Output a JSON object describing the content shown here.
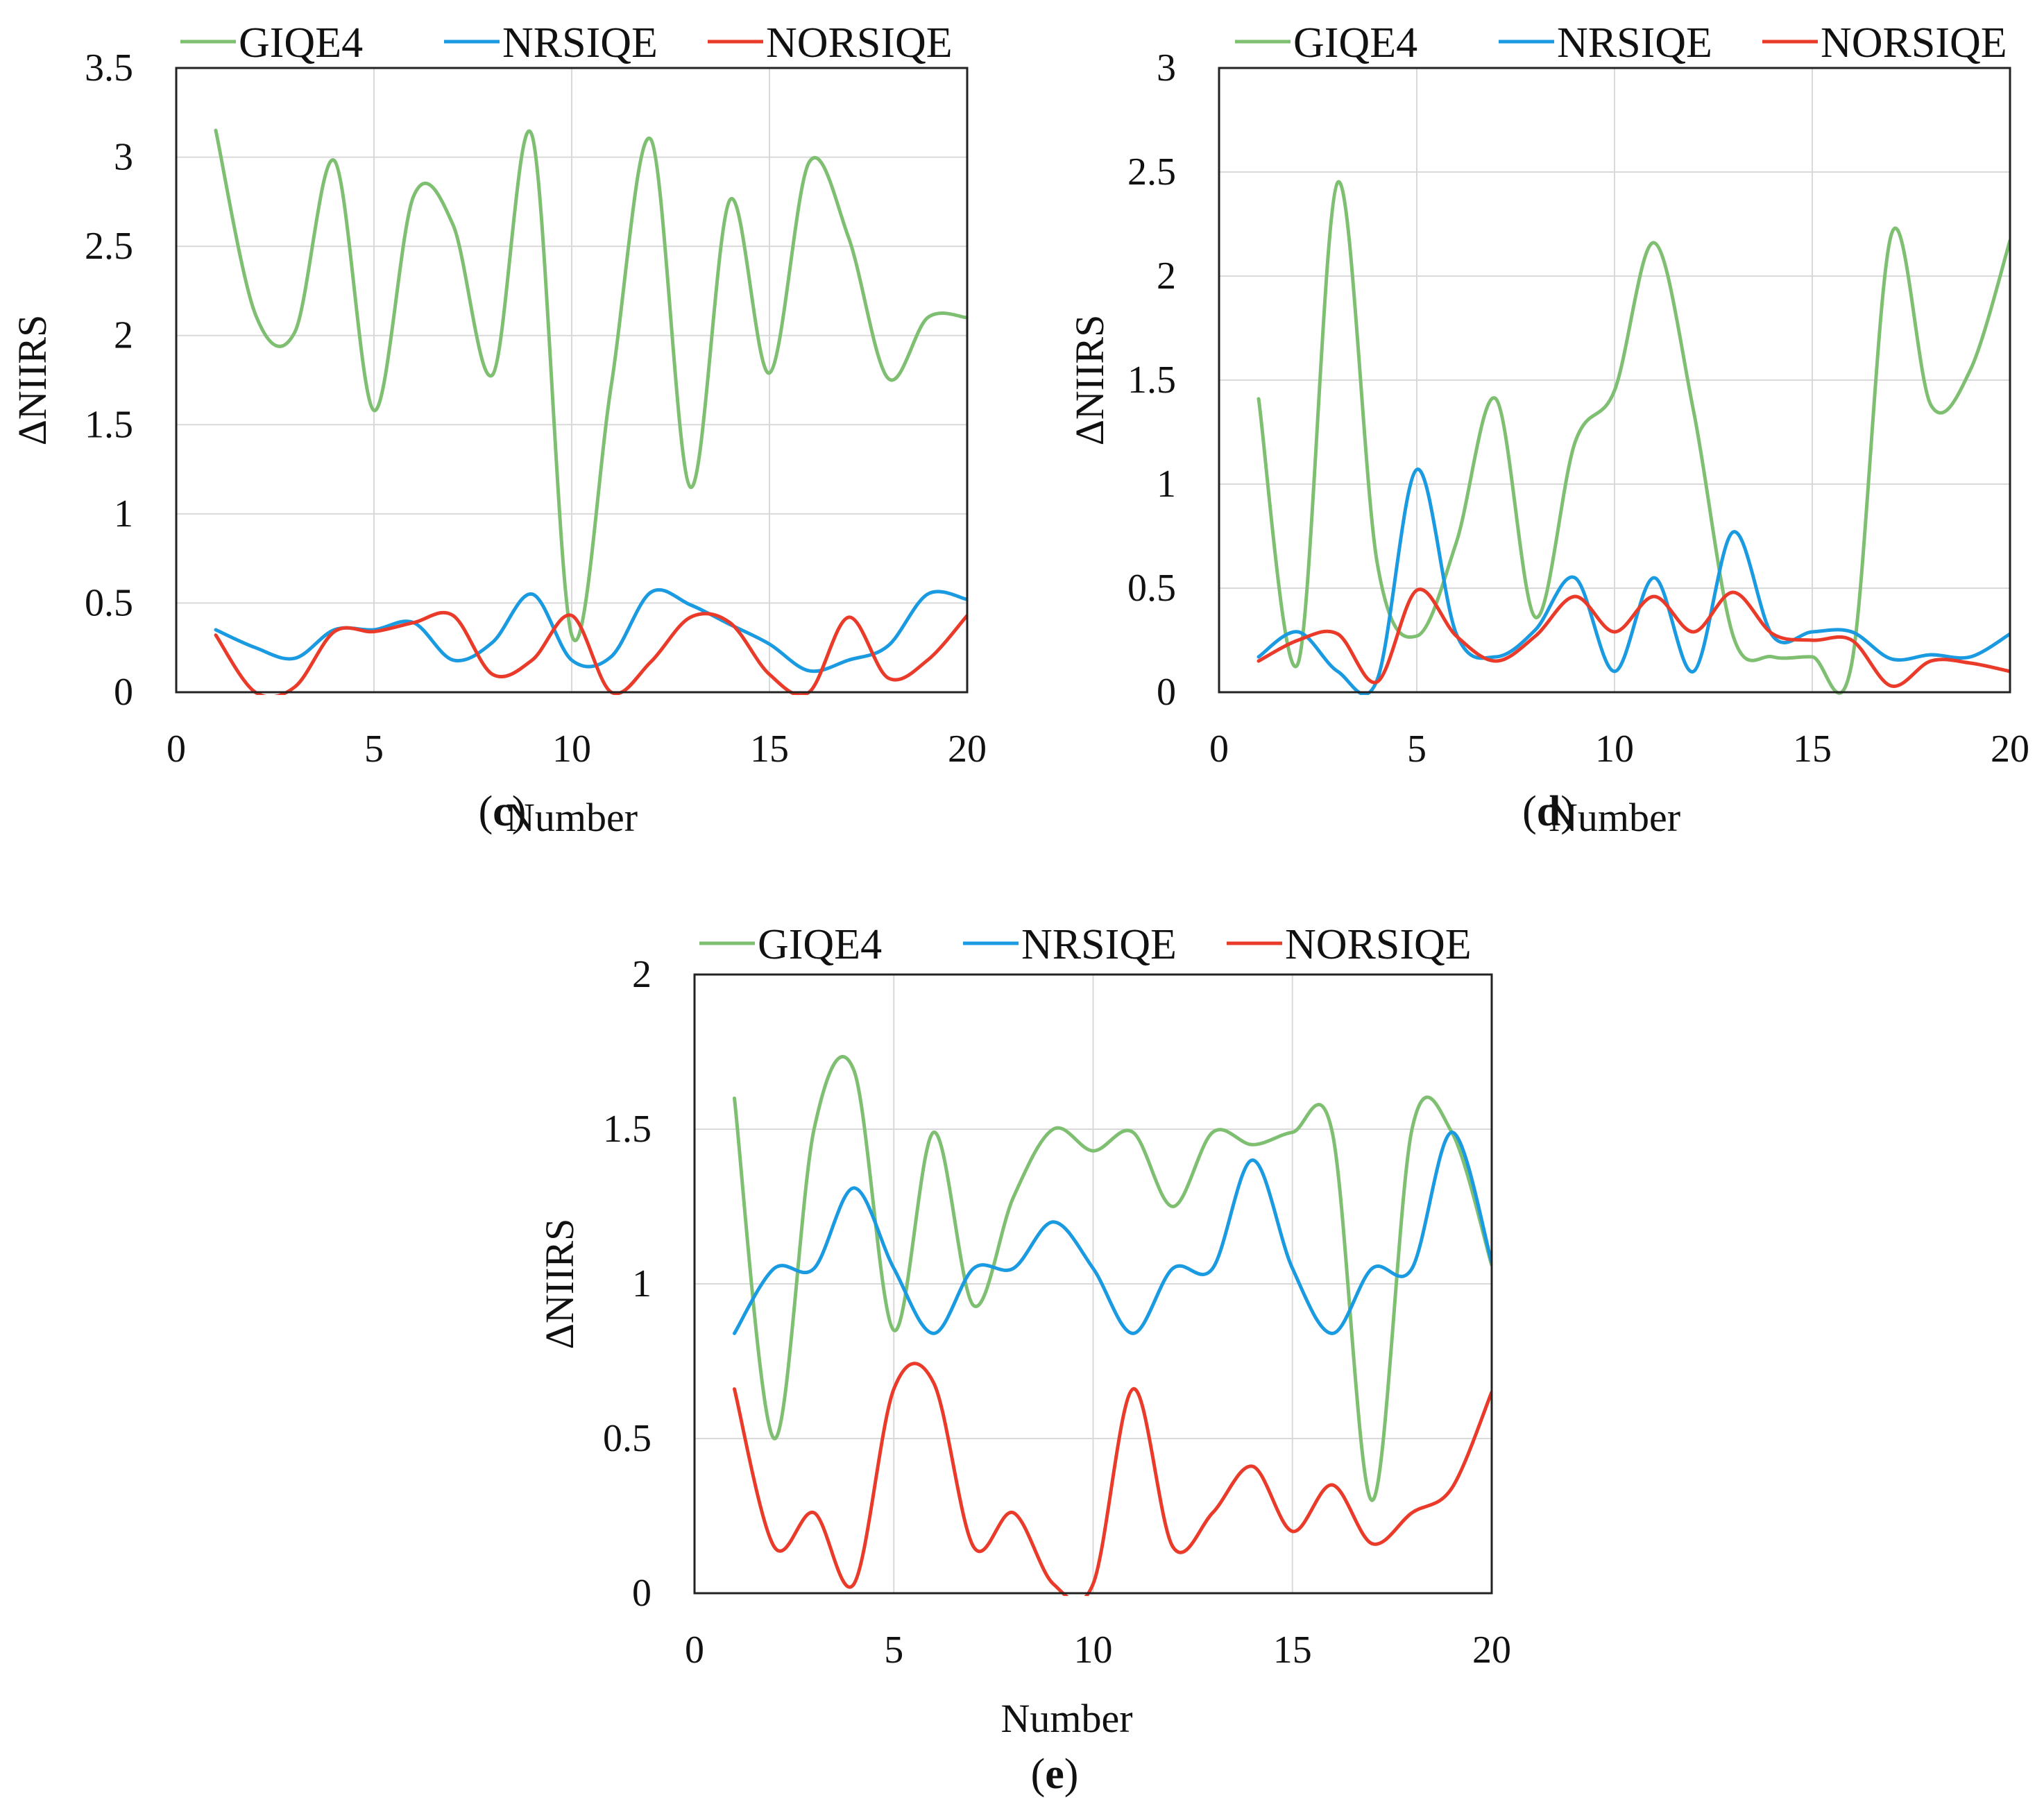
{
  "figure": {
    "ylabel": "ΔNIIRS",
    "xlabel": "Number",
    "legend": [
      "GIQE4",
      "NRSIQE",
      "NORSIQE"
    ]
  },
  "colors": {
    "GIQE4": "#7fbf72",
    "NRSIQE": "#1a9ae0",
    "NORSIQE": "#ea3b2a",
    "grid": "#d9d9d9",
    "axis": "#222222"
  },
  "chart_data": [
    {
      "type": "line",
      "panel_label": "c",
      "xlabel": "Number",
      "ylabel": "ΔNIIRS",
      "xlim": [
        0,
        20
      ],
      "ylim": [
        0,
        3.5
      ],
      "xticks": [
        "0",
        "5",
        "10",
        "15",
        "20"
      ],
      "yticks": [
        "0",
        "0.5",
        "1",
        "1.5",
        "2",
        "2.5",
        "3",
        "3.5"
      ],
      "grid": true,
      "legend_position": "top",
      "x": [
        1,
        2,
        3,
        4,
        5,
        6,
        7,
        8,
        9,
        10,
        11,
        12,
        13,
        14,
        15,
        16,
        17,
        18,
        19,
        20
      ],
      "series": [
        {
          "name": "GIQE4",
          "values": [
            3.15,
            2.12,
            2.02,
            2.98,
            1.58,
            2.78,
            2.62,
            1.78,
            3.12,
            0.32,
            1.72,
            3.1,
            1.15,
            2.76,
            1.79,
            2.97,
            2.55,
            1.76,
            2.1,
            2.1
          ]
        },
        {
          "name": "NRSIQE",
          "values": [
            0.35,
            0.25,
            0.19,
            0.35,
            0.35,
            0.39,
            0.18,
            0.28,
            0.55,
            0.18,
            0.2,
            0.56,
            0.49,
            0.38,
            0.27,
            0.12,
            0.18,
            0.26,
            0.55,
            0.52
          ]
        },
        {
          "name": "NORSIQE",
          "values": [
            0.32,
            0.0,
            0.03,
            0.34,
            0.34,
            0.39,
            0.43,
            0.1,
            0.18,
            0.43,
            0.0,
            0.17,
            0.42,
            0.39,
            0.1,
            0.0,
            0.42,
            0.08,
            0.18,
            0.43
          ]
        }
      ]
    },
    {
      "type": "line",
      "panel_label": "d",
      "xlabel": "Number",
      "ylabel": "ΔNIIRS",
      "xlim": [
        0,
        20
      ],
      "ylim": [
        0,
        3
      ],
      "xticks": [
        "0",
        "5",
        "10",
        "15",
        "20"
      ],
      "yticks": [
        "0",
        "0.5",
        "1",
        "1.5",
        "2",
        "2.5",
        "3"
      ],
      "grid": true,
      "legend_position": "top",
      "x": [
        1,
        2,
        3,
        4,
        5,
        6,
        7,
        8,
        9,
        10,
        11,
        12,
        13,
        14,
        15,
        16,
        17,
        18,
        19,
        20
      ],
      "series": [
        {
          "name": "GIQE4",
          "values": [
            1.41,
            0.14,
            2.45,
            0.62,
            0.27,
            0.72,
            1.41,
            0.36,
            1.2,
            1.45,
            2.16,
            1.35,
            0.27,
            0.17,
            0.17,
            0.14,
            2.2,
            1.38,
            1.55,
            2.17
          ]
        },
        {
          "name": "NRSIQE",
          "values": [
            0.17,
            0.29,
            0.1,
            0.06,
            1.07,
            0.28,
            0.17,
            0.3,
            0.55,
            0.1,
            0.55,
            0.1,
            0.77,
            0.27,
            0.29,
            0.29,
            0.16,
            0.18,
            0.17,
            0.28
          ]
        },
        {
          "name": "NORSIQE",
          "values": [
            0.15,
            0.25,
            0.28,
            0.05,
            0.49,
            0.27,
            0.15,
            0.27,
            0.46,
            0.29,
            0.46,
            0.29,
            0.48,
            0.28,
            0.25,
            0.25,
            0.03,
            0.15,
            0.14,
            0.1
          ]
        }
      ]
    },
    {
      "type": "line",
      "panel_label": "e",
      "xlabel": "Number",
      "ylabel": "ΔNIIRS",
      "xlim": [
        0,
        20
      ],
      "ylim": [
        0,
        2
      ],
      "xticks": [
        "0",
        "5",
        "10",
        "15",
        "20"
      ],
      "yticks": [
        "0",
        "0.5",
        "1",
        "1.5",
        "2"
      ],
      "grid": true,
      "legend_position": "top",
      "x": [
        1,
        2,
        3,
        4,
        5,
        6,
        7,
        8,
        9,
        10,
        11,
        12,
        13,
        14,
        15,
        16,
        17,
        18,
        19,
        20
      ],
      "series": [
        {
          "name": "GIQE4",
          "values": [
            1.6,
            0.5,
            1.5,
            1.69,
            0.85,
            1.49,
            0.93,
            1.28,
            1.5,
            1.43,
            1.49,
            1.25,
            1.49,
            1.45,
            1.49,
            1.49,
            0.3,
            1.5,
            1.49,
            1.06
          ]
        },
        {
          "name": "NRSIQE",
          "values": [
            0.84,
            1.05,
            1.05,
            1.31,
            1.05,
            0.84,
            1.05,
            1.05,
            1.2,
            1.05,
            0.84,
            1.05,
            1.05,
            1.4,
            1.05,
            0.84,
            1.05,
            1.05,
            1.49,
            1.07
          ]
        },
        {
          "name": "NORSIQE",
          "values": [
            0.66,
            0.15,
            0.26,
            0.03,
            0.66,
            0.68,
            0.15,
            0.26,
            0.03,
            0.03,
            0.66,
            0.15,
            0.26,
            0.41,
            0.2,
            0.35,
            0.16,
            0.26,
            0.34,
            0.65
          ]
        }
      ]
    }
  ]
}
